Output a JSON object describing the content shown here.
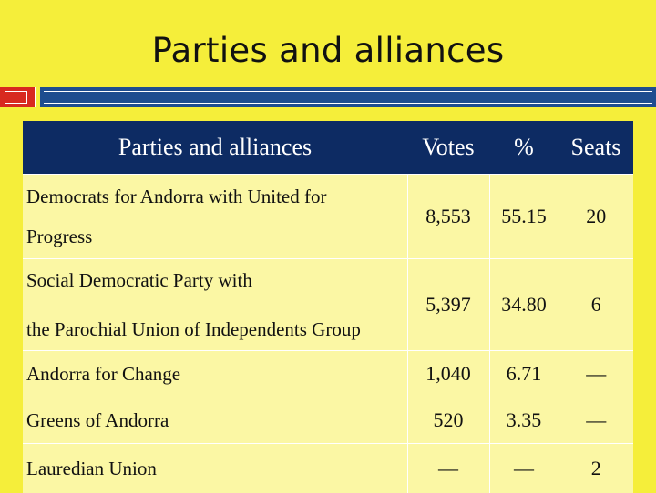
{
  "slide": {
    "title": "Parties and alliances"
  },
  "table": {
    "headers": {
      "party": "Parties and alliances",
      "votes": "Votes",
      "percent": "%",
      "seats": "Seats"
    },
    "rows": [
      {
        "party_line1": "Democrats for Andorra with United for",
        "party_line2": "Progress",
        "votes": "8,553",
        "percent": "55.15",
        "seats": "20"
      },
      {
        "party_line1": "Social Democratic Party with",
        "party_line2": "the Parochial Union of Independents Group",
        "votes": "5,397",
        "percent": "34.80",
        "seats": "6"
      },
      {
        "party": "Andorra for Change",
        "votes": "1,040",
        "percent": "6.71",
        "seats": "—"
      },
      {
        "party": "Greens of Andorra",
        "votes": "520",
        "percent": "3.35",
        "seats": "—"
      },
      {
        "party": "Lauredian Union",
        "votes": "—",
        "percent": "—",
        "seats": "2"
      }
    ]
  },
  "colors": {
    "background": "#f5ee3a",
    "header": "#0d2b63",
    "row": "#fbf7a4",
    "accent_red": "#d8291f",
    "accent_blue": "#1e4d8f"
  }
}
